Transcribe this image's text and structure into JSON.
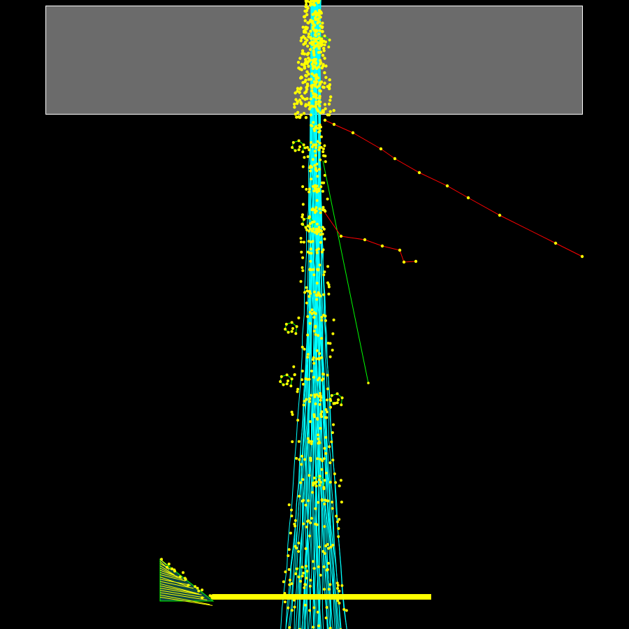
{
  "colors": {
    "background": "#000000",
    "target_block": "#6b6b6b",
    "target_outline": "#ffffff",
    "primary_track": "#00ffff",
    "secondary_track": "#00ff00",
    "charged_track": "#ff0000",
    "step_point": "#ffff00",
    "detector_fill": "#0f4a45",
    "detector_edge": "#00ff00"
  },
  "icons": {
    "target": "target-block-icon",
    "detector": "detector-plane-icon"
  }
}
